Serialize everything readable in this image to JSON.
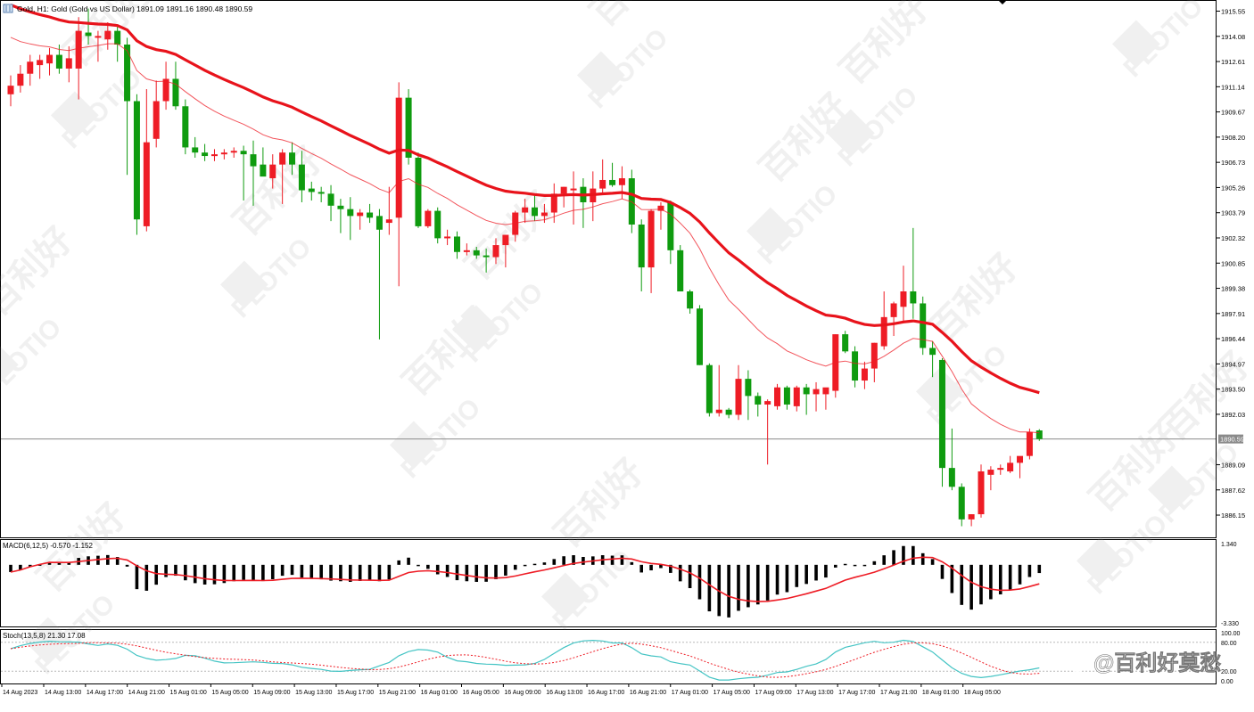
{
  "watermark": {
    "brand": "PLOTIO",
    "cn": "百利好",
    "footer": "@百利好莫愁"
  },
  "chart_data": [
    {
      "type": "candlestick",
      "title": "Gold, H1:  Gold (Gold vs US Dollar)  1891.09 1891.16 1890.48 1890.59",
      "ylim": [
        1884.8,
        1916.2
      ],
      "y_ticks": [
        "1915.55",
        "1914.08",
        "1912.61",
        "1911.14",
        "1909.67",
        "1908.20",
        "1906.73",
        "1905.26",
        "1903.79",
        "1902.32",
        "1900.85",
        "1899.38",
        "1897.91",
        "1896.44",
        "1894.97",
        "1893.50",
        "1892.03",
        "1890.59",
        "1889.09",
        "1887.62",
        "1886.15"
      ],
      "current_price": 1890.59,
      "x_ticks": [
        "14 Aug 2023",
        "14 Aug 13:00",
        "14 Aug 17:00",
        "14 Aug 21:00",
        "15 Aug 01:00",
        "15 Aug 05:00",
        "15 Aug 09:00",
        "15 Aug 13:00",
        "15 Aug 17:00",
        "15 Aug 21:00",
        "16 Aug 01:00",
        "16 Aug 05:00",
        "16 Aug 09:00",
        "16 Aug 13:00",
        "16 Aug 17:00",
        "16 Aug 21:00",
        "17 Aug 01:00",
        "17 Aug 05:00",
        "17 Aug 09:00",
        "17 Aug 13:00",
        "17 Aug 17:00",
        "17 Aug 21:00",
        "18 Aug 01:00",
        "18 Aug 05:00"
      ],
      "up_color": "#ee1c25",
      "down_color": "#0f9b0f",
      "candles": [
        [
          1910.7,
          1911.8,
          1910.0,
          1911.2
        ],
        [
          1911.2,
          1912.4,
          1910.8,
          1911.9
        ],
        [
          1911.9,
          1913.0,
          1911.2,
          1912.6
        ],
        [
          1912.4,
          1913.0,
          1911.6,
          1912.7
        ],
        [
          1912.5,
          1913.4,
          1911.8,
          1913.0
        ],
        [
          1913.0,
          1913.6,
          1911.9,
          1912.2
        ],
        [
          1912.2,
          1913.5,
          1911.4,
          1912.8
        ],
        [
          1912.2,
          1915.2,
          1910.4,
          1914.4
        ],
        [
          1914.3,
          1915.7,
          1913.6,
          1914.1
        ],
        [
          1914.0,
          1914.4,
          1912.6,
          1914.1
        ],
        [
          1913.9,
          1914.9,
          1913.3,
          1914.4
        ],
        [
          1914.4,
          1914.7,
          1912.6,
          1913.6
        ],
        [
          1913.6,
          1914.0,
          1906.0,
          1910.3
        ],
        [
          1910.3,
          1910.7,
          1902.5,
          1903.4
        ],
        [
          1903.0,
          1911.0,
          1902.7,
          1907.9
        ],
        [
          1908.1,
          1911.5,
          1907.6,
          1910.3
        ],
        [
          1910.3,
          1912.6,
          1909.8,
          1911.6
        ],
        [
          1911.6,
          1912.6,
          1909.8,
          1910.0
        ],
        [
          1910.0,
          1910.4,
          1907.2,
          1907.6
        ],
        [
          1907.6,
          1908.2,
          1907.0,
          1907.3
        ],
        [
          1907.3,
          1907.8,
          1906.8,
          1907.1
        ],
        [
          1907.1,
          1907.5,
          1906.8,
          1907.2
        ],
        [
          1907.2,
          1907.5,
          1906.9,
          1907.3
        ],
        [
          1907.3,
          1907.6,
          1907.0,
          1907.4
        ],
        [
          1907.4,
          1907.7,
          1904.5,
          1907.2
        ],
        [
          1907.2,
          1908.0,
          1904.2,
          1906.5
        ],
        [
          1906.6,
          1907.6,
          1906.0,
          1905.9
        ],
        [
          1905.8,
          1907.2,
          1905.2,
          1906.6
        ],
        [
          1906.6,
          1907.5,
          1904.3,
          1907.3
        ],
        [
          1907.3,
          1907.9,
          1906.0,
          1906.6
        ],
        [
          1906.6,
          1907.4,
          1904.4,
          1905.1
        ],
        [
          1905.2,
          1905.6,
          1904.5,
          1905.0
        ],
        [
          1905.0,
          1905.3,
          1904.4,
          1904.9
        ],
        [
          1904.9,
          1905.4,
          1903.3,
          1904.2
        ],
        [
          1904.2,
          1904.6,
          1902.6,
          1904.0
        ],
        [
          1904.0,
          1904.7,
          1902.2,
          1903.6
        ],
        [
          1903.6,
          1904.0,
          1902.8,
          1903.8
        ],
        [
          1903.8,
          1904.3,
          1903.2,
          1903.5
        ],
        [
          1903.6,
          1904.0,
          1896.4,
          1902.8
        ],
        [
          1903.2,
          1905.3,
          1902.5,
          1903.4
        ],
        [
          1903.5,
          1911.4,
          1899.5,
          1910.5
        ],
        [
          1910.5,
          1911.0,
          1906.6,
          1907.0
        ],
        [
          1907.0,
          1907.3,
          1902.9,
          1903.0
        ],
        [
          1903.0,
          1904.0,
          1902.9,
          1903.9
        ],
        [
          1903.9,
          1904.1,
          1902.0,
          1902.3
        ],
        [
          1902.3,
          1902.8,
          1901.9,
          1902.4
        ],
        [
          1902.4,
          1902.7,
          1901.1,
          1901.5
        ],
        [
          1901.5,
          1902.0,
          1901.3,
          1901.6
        ],
        [
          1901.6,
          1901.8,
          1901.1,
          1901.3
        ],
        [
          1901.3,
          1901.7,
          1900.3,
          1901.2
        ],
        [
          1901.2,
          1902.3,
          1900.8,
          1901.9
        ],
        [
          1901.9,
          1902.5,
          1900.6,
          1902.5
        ],
        [
          1902.5,
          1903.9,
          1902.1,
          1903.8
        ],
        [
          1903.8,
          1904.6,
          1903.2,
          1904.1
        ],
        [
          1904.1,
          1904.8,
          1903.3,
          1903.6
        ],
        [
          1903.6,
          1904.3,
          1903.2,
          1903.8
        ],
        [
          1903.8,
          1905.5,
          1903.2,
          1904.9
        ],
        [
          1904.9,
          1905.3,
          1904.1,
          1905.3
        ],
        [
          1905.1,
          1906.2,
          1903.1,
          1905.2
        ],
        [
          1905.3,
          1905.8,
          1902.9,
          1904.4
        ],
        [
          1904.4,
          1906.2,
          1903.3,
          1905.2
        ],
        [
          1905.2,
          1906.9,
          1904.9,
          1905.7
        ],
        [
          1905.7,
          1906.7,
          1905.3,
          1905.4
        ],
        [
          1905.4,
          1906.5,
          1904.6,
          1905.8
        ],
        [
          1905.8,
          1906.3,
          1902.6,
          1903.1
        ],
        [
          1903.1,
          1903.4,
          1899.2,
          1900.6
        ],
        [
          1900.6,
          1904.0,
          1899.1,
          1903.9
        ],
        [
          1903.9,
          1904.4,
          1902.8,
          1904.2
        ],
        [
          1904.4,
          1904.5,
          1900.8,
          1901.6
        ],
        [
          1901.6,
          1901.9,
          1899.2,
          1899.2
        ],
        [
          1899.2,
          1899.3,
          1897.9,
          1898.2
        ],
        [
          1898.2,
          1898.4,
          1894.9,
          1894.9
        ],
        [
          1894.9,
          1895.0,
          1891.9,
          1892.1
        ],
        [
          1892.1,
          1894.9,
          1891.9,
          1892.3
        ],
        [
          1892.3,
          1892.4,
          1891.8,
          1892.0
        ],
        [
          1892.0,
          1894.9,
          1891.7,
          1894.1
        ],
        [
          1894.1,
          1894.6,
          1891.7,
          1893.1
        ],
        [
          1893.1,
          1893.3,
          1891.9,
          1892.6
        ],
        [
          1892.6,
          1892.9,
          1889.1,
          1892.8
        ],
        [
          1892.5,
          1893.8,
          1892.3,
          1893.6
        ],
        [
          1893.6,
          1893.7,
          1892.3,
          1892.6
        ],
        [
          1892.5,
          1893.7,
          1892.2,
          1893.6
        ],
        [
          1893.6,
          1893.8,
          1892.0,
          1893.2
        ],
        [
          1893.2,
          1893.9,
          1892.2,
          1893.5
        ],
        [
          1893.2,
          1893.5,
          1892.3,
          1893.6
        ],
        [
          1893.4,
          1896.7,
          1893.0,
          1896.7
        ],
        [
          1896.7,
          1896.9,
          1895.6,
          1895.7
        ],
        [
          1895.7,
          1896.0,
          1893.6,
          1894.0
        ],
        [
          1894.0,
          1895.1,
          1893.5,
          1894.7
        ],
        [
          1894.7,
          1896.2,
          1893.9,
          1896.2
        ],
        [
          1896.0,
          1899.2,
          1895.8,
          1897.7
        ],
        [
          1897.7,
          1898.6,
          1896.6,
          1898.5
        ],
        [
          1898.3,
          1900.7,
          1897.4,
          1899.2
        ],
        [
          1899.2,
          1902.9,
          1897.6,
          1898.5
        ],
        [
          1898.5,
          1898.9,
          1895.5,
          1895.9
        ],
        [
          1895.9,
          1896.3,
          1894.2,
          1895.5
        ],
        [
          1895.2,
          1895.3,
          1887.8,
          1888.9
        ],
        [
          1888.9,
          1891.2,
          1887.6,
          1887.8
        ],
        [
          1887.8,
          1888.0,
          1885.5,
          1885.9
        ],
        [
          1885.9,
          1886.2,
          1885.5,
          1886.2
        ],
        [
          1886.2,
          1889.1,
          1886.0,
          1888.7
        ],
        [
          1888.5,
          1889.0,
          1887.6,
          1888.8
        ],
        [
          1888.8,
          1889.1,
          1888.5,
          1888.9
        ],
        [
          1888.7,
          1889.6,
          1888.6,
          1889.2
        ],
        [
          1889.2,
          1889.5,
          1888.3,
          1889.6
        ],
        [
          1889.6,
          1891.2,
          1889.4,
          1891.0
        ],
        [
          1891.09,
          1891.16,
          1890.48,
          1890.59
        ]
      ]
    },
    {
      "type": "bar",
      "title": "MACD(6,12,5) -0.570 -1.152",
      "ylim": [
        -3.33,
        1.34
      ],
      "y_ticks": [
        "1.340",
        "-3.330"
      ],
      "bar_color": "#000000",
      "signal_color": "#ee1c25"
    },
    {
      "type": "line",
      "title": "Stoch(13,5,8) 21.30 17.08",
      "ylim": [
        0,
        100
      ],
      "y_ticks": [
        "100.00",
        "80.00",
        "20.00",
        "0.00"
      ],
      "main_color": "#44c4c4",
      "signal_color": "#ee1c25"
    }
  ]
}
